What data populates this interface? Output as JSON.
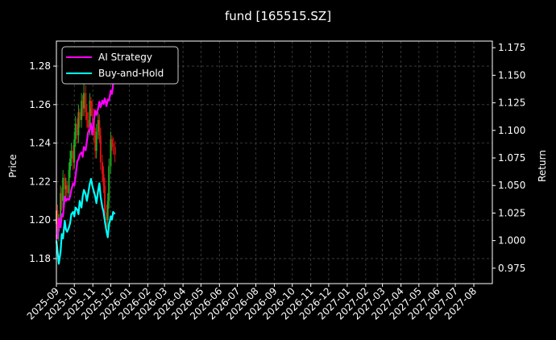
{
  "chart_data": {
    "type": "line",
    "title": "fund [165515.SZ]",
    "xlabel": "",
    "ylabel": "Price",
    "y2label": "Return",
    "background": "#000000",
    "grid": true,
    "legend_position": "top-left",
    "x_tick_labels": [
      "2025-09",
      "2025-10",
      "2025-11",
      "2025-12",
      "2026-01",
      "2026-02",
      "2026-03",
      "2026-04",
      "2026-05",
      "2026-06",
      "2026-07",
      "2026-08",
      "2026-09",
      "2026-10",
      "2026-11",
      "2026-12",
      "2027-01",
      "2027-02",
      "2027-03",
      "2027-04",
      "2027-05",
      "2027-06",
      "2027-07",
      "2027-08"
    ],
    "x_range": [
      "2025-09-01",
      "2027-09-01"
    ],
    "ylim": [
      1.167,
      1.293
    ],
    "yticks": [
      "1.18",
      "1.20",
      "1.22",
      "1.24",
      "1.26",
      "1.28"
    ],
    "y2lim": [
      0.961,
      1.181
    ],
    "y2ticks": [
      "0.975",
      "1.000",
      "1.025",
      "1.050",
      "1.075",
      "1.100",
      "1.125",
      "1.150",
      "1.175"
    ],
    "series": [
      {
        "name": "AI Strategy",
        "axis": "right",
        "color": "#ff00ff",
        "x": [
          "2025-09-01",
          "2025-09-03",
          "2025-09-05",
          "2025-09-08",
          "2025-09-10",
          "2025-09-12",
          "2025-09-15",
          "2025-09-17",
          "2025-09-19",
          "2025-09-22",
          "2025-09-24",
          "2025-09-26",
          "2025-09-29",
          "2025-10-01",
          "2025-10-03",
          "2025-10-06",
          "2025-10-08",
          "2025-10-10",
          "2025-10-13",
          "2025-10-15",
          "2025-10-17",
          "2025-10-20",
          "2025-10-22",
          "2025-10-24",
          "2025-10-27",
          "2025-10-29",
          "2025-10-31",
          "2025-11-03",
          "2025-11-05",
          "2025-11-07",
          "2025-11-10",
          "2025-11-12",
          "2025-11-14",
          "2025-11-17",
          "2025-11-19",
          "2025-11-21",
          "2025-11-24",
          "2025-11-26",
          "2025-11-28",
          "2025-12-01",
          "2025-12-03",
          "2025-12-05",
          "2025-12-08"
        ],
        "values": [
          1.005,
          1.002,
          1.02,
          1.012,
          1.024,
          1.022,
          1.04,
          1.036,
          1.038,
          1.037,
          1.04,
          1.046,
          1.052,
          1.05,
          1.058,
          1.072,
          1.074,
          1.078,
          1.08,
          1.076,
          1.085,
          1.082,
          1.09,
          1.098,
          1.101,
          1.106,
          1.096,
          1.11,
          1.118,
          1.114,
          1.12,
          1.126,
          1.121,
          1.127,
          1.124,
          1.129,
          1.122,
          1.128,
          1.127,
          1.136,
          1.133,
          1.142,
          1.152
        ]
      },
      {
        "name": "Buy-and-Hold",
        "axis": "right",
        "color": "#00ffff",
        "x": [
          "2025-09-01",
          "2025-09-03",
          "2025-09-05",
          "2025-09-08",
          "2025-09-10",
          "2025-09-12",
          "2025-09-15",
          "2025-09-17",
          "2025-09-19",
          "2025-09-22",
          "2025-09-24",
          "2025-09-26",
          "2025-09-29",
          "2025-10-01",
          "2025-10-03",
          "2025-10-06",
          "2025-10-08",
          "2025-10-10",
          "2025-10-13",
          "2025-10-15",
          "2025-10-17",
          "2025-10-20",
          "2025-10-22",
          "2025-10-24",
          "2025-10-27",
          "2025-10-29",
          "2025-10-31",
          "2025-11-03",
          "2025-11-05",
          "2025-11-07",
          "2025-11-10",
          "2025-11-12",
          "2025-11-14",
          "2025-11-17",
          "2025-11-19",
          "2025-11-21",
          "2025-11-24",
          "2025-11-26",
          "2025-11-28",
          "2025-12-01",
          "2025-12-03",
          "2025-12-05",
          "2025-12-08"
        ],
        "values": [
          1.0,
          0.99,
          0.979,
          0.99,
          1.006,
          1.002,
          1.018,
          1.01,
          1.008,
          1.012,
          1.016,
          1.024,
          1.026,
          1.022,
          1.03,
          1.028,
          1.024,
          1.036,
          1.03,
          1.04,
          1.046,
          1.042,
          1.036,
          1.042,
          1.052,
          1.056,
          1.05,
          1.044,
          1.04,
          1.034,
          1.046,
          1.052,
          1.04,
          1.03,
          1.026,
          1.018,
          1.008,
          1.003,
          1.014,
          1.022,
          1.019,
          1.026,
          1.024
        ]
      }
    ],
    "candles": {
      "axis": "left",
      "up_color": "#22aa22",
      "down_color": "#dd1111",
      "x": [
        "2025-09-01",
        "2025-09-03",
        "2025-09-05",
        "2025-09-08",
        "2025-09-10",
        "2025-09-12",
        "2025-09-15",
        "2025-09-17",
        "2025-09-19",
        "2025-09-22",
        "2025-09-24",
        "2025-09-26",
        "2025-09-29",
        "2025-10-01",
        "2025-10-03",
        "2025-10-06",
        "2025-10-08",
        "2025-10-10",
        "2025-10-13",
        "2025-10-15",
        "2025-10-17",
        "2025-10-20",
        "2025-10-22",
        "2025-10-24",
        "2025-10-27",
        "2025-10-29",
        "2025-10-31",
        "2025-11-03",
        "2025-11-05",
        "2025-11-07",
        "2025-11-10",
        "2025-11-12",
        "2025-11-14",
        "2025-11-17",
        "2025-11-19",
        "2025-11-21",
        "2025-11-24",
        "2025-11-26",
        "2025-11-28",
        "2025-12-01",
        "2025-12-03",
        "2025-12-05",
        "2025-12-08"
      ],
      "open": [
        1.198,
        1.205,
        1.194,
        1.2,
        1.214,
        1.21,
        1.222,
        1.216,
        1.218,
        1.214,
        1.226,
        1.232,
        1.236,
        1.23,
        1.242,
        1.25,
        1.244,
        1.256,
        1.252,
        1.262,
        1.258,
        1.266,
        1.256,
        1.252,
        1.248,
        1.262,
        1.258,
        1.254,
        1.244,
        1.236,
        1.246,
        1.252,
        1.244,
        1.23,
        1.224,
        1.218,
        1.204,
        1.2,
        1.21,
        1.228,
        1.242,
        1.24,
        1.238
      ],
      "close": [
        1.205,
        1.194,
        1.2,
        1.214,
        1.21,
        1.222,
        1.216,
        1.218,
        1.214,
        1.226,
        1.232,
        1.236,
        1.23,
        1.242,
        1.25,
        1.244,
        1.256,
        1.252,
        1.262,
        1.258,
        1.266,
        1.256,
        1.252,
        1.248,
        1.262,
        1.258,
        1.254,
        1.244,
        1.236,
        1.246,
        1.252,
        1.244,
        1.23,
        1.224,
        1.218,
        1.204,
        1.2,
        1.21,
        1.228,
        1.242,
        1.24,
        1.238,
        1.234
      ],
      "high": [
        1.21,
        1.208,
        1.203,
        1.218,
        1.217,
        1.226,
        1.224,
        1.222,
        1.22,
        1.23,
        1.236,
        1.24,
        1.239,
        1.246,
        1.254,
        1.253,
        1.26,
        1.258,
        1.266,
        1.265,
        1.272,
        1.27,
        1.26,
        1.256,
        1.266,
        1.264,
        1.262,
        1.258,
        1.248,
        1.25,
        1.256,
        1.255,
        1.248,
        1.234,
        1.228,
        1.222,
        1.208,
        1.214,
        1.232,
        1.246,
        1.244,
        1.243,
        1.241
      ],
      "low": [
        1.192,
        1.19,
        1.189,
        1.196,
        1.205,
        1.206,
        1.212,
        1.212,
        1.21,
        1.211,
        1.222,
        1.228,
        1.226,
        1.227,
        1.238,
        1.24,
        1.24,
        1.248,
        1.248,
        1.254,
        1.254,
        1.252,
        1.248,
        1.244,
        1.244,
        1.254,
        1.25,
        1.24,
        1.232,
        1.232,
        1.242,
        1.24,
        1.226,
        1.22,
        1.214,
        1.2,
        1.196,
        1.196,
        1.206,
        1.224,
        1.236,
        1.234,
        1.23
      ]
    }
  }
}
